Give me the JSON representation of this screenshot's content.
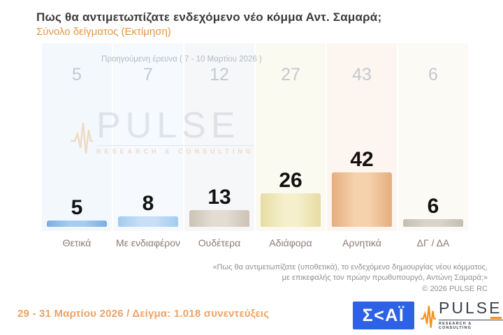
{
  "title": "Πως θα αντιμετωπίζατε ενδεχόμενο νέο κόμμα Αντ. Σαμαρά;",
  "subtitle": "Σύνολο δείγματος  (Εκτίμηση)",
  "chart_data": {
    "type": "bar",
    "title": "Πως θα αντιμετωπίζατε ενδεχόμενο νέο κόμμα Αντ. Σαμαρά;",
    "subtitle": "Σύνολο δείγματος (Εκτίμηση)",
    "unit": "%",
    "ylim": [
      0,
      45
    ],
    "grid": false,
    "legend_position": "none",
    "categories": [
      "Θετικά",
      "Με ενδιαφέρον",
      "Ουδέτερα",
      "Αδιάφορα",
      "Αρνητικά",
      "ΔΓ / ΔΑ"
    ],
    "series": [
      {
        "name": "Εκτίμηση (29 - 31 Μαρτίου 2026)",
        "values": [
          5,
          8,
          13,
          26,
          42,
          6
        ]
      },
      {
        "name": "Προηγούμενη έρευνα ( 7 - 10 Μαρτίου 2026 )",
        "values": [
          5,
          7,
          12,
          27,
          43,
          6
        ]
      }
    ],
    "bar_styles": [
      {
        "edge": "#79aee3",
        "mid": "#a8ccf0",
        "band": "#f3f8fd"
      },
      {
        "edge": "#a2cbee",
        "mid": "#c8dff6",
        "band": "#f6f9fd"
      },
      {
        "edge": "#ccc2b5",
        "mid": "#e3dcd3",
        "band": "#f6f7f9"
      },
      {
        "edge": "#e7dca3",
        "mid": "#f5efcb",
        "band": "#fbfaf1"
      },
      {
        "edge": "#e5ad7d",
        "mid": "#f5d1ac",
        "band": "#fdf5ef"
      },
      {
        "edge": "#c5beb1",
        "mid": "#d9d3c9",
        "band": "#fbfaf5"
      }
    ]
  },
  "footnote": {
    "line1": "«Πως θα αντιμετωπίζατε (υποθετικά), το ενδεχόμενο δημιουργίας νέου κόμματος,",
    "line2": "με επικεφαλής τον πρώην πρωθυπουργό, Αντώνη Σαμαρά;»",
    "copyright": "©  2026  PULSE RC"
  },
  "footer": {
    "fieldwork": "29 - 31  Μαρτίου 2026  /  Δείγμα:  1.018 συνεντεύξεις"
  },
  "logos": {
    "skai_text": "Σ<ΑΪ",
    "pulse_text": "PULSE",
    "pulse_sub": "RESEARCH & CONSULTING"
  },
  "watermark": {
    "text": "PULSE",
    "sub": "RESEARCH & CONSULTING"
  },
  "colors": {
    "title": "#3b3b3b",
    "subtitle_orange": "#e8963f",
    "previous_values": "#c4c9d1",
    "value_labels": "#121212",
    "category_labels": "#8b7b73",
    "footnote_gray": "#8f8f8f",
    "fieldwork_orange": "#f0a263",
    "skai_blue": "#2d62e6",
    "pulse_orange": "#f5921e",
    "pulse_dark": "#39404d"
  }
}
